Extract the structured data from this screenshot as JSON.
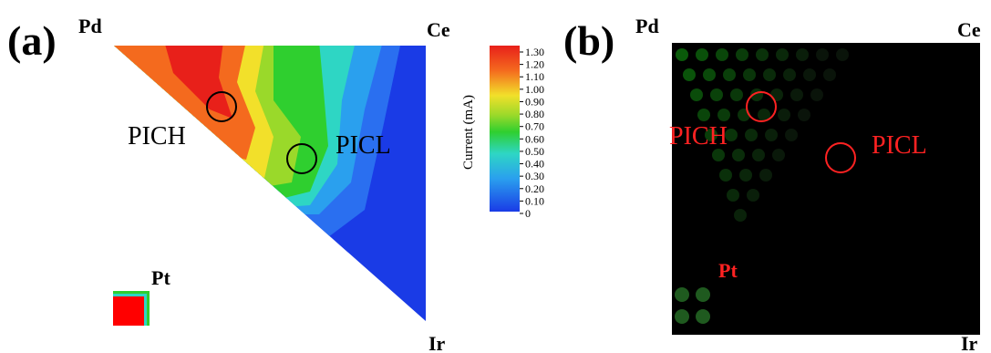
{
  "panel_a": {
    "label": "(a)",
    "corners": {
      "top_left": "Pd",
      "top_right": "Ce",
      "bottom_right": "Ir"
    },
    "regions": [
      "PICH",
      "PICL"
    ],
    "sample": "Pt",
    "colorbar": {
      "title": "Current (mA)",
      "ticks": [
        "1.30",
        "1.20",
        "1.10",
        "1.00",
        "0.90",
        "0.80",
        "0.70",
        "0.60",
        "0.50",
        "0.40",
        "0.30",
        "0.20",
        "0.10",
        "0"
      ]
    }
  },
  "panel_b": {
    "label": "(b)",
    "corners": {
      "top_left": "Pd",
      "top_right": "Ce",
      "bottom_right": "Ir"
    },
    "regions": [
      "PICH",
      "PICL"
    ],
    "sample": "Pt"
  }
}
